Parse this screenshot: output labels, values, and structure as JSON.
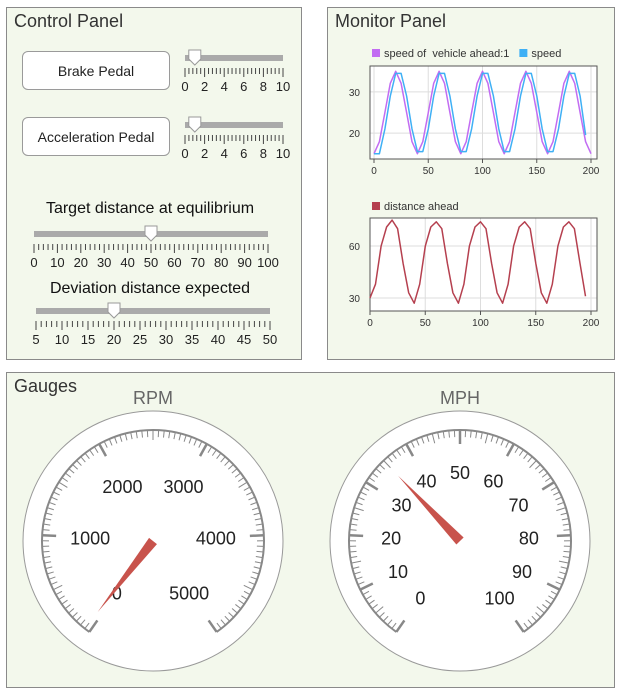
{
  "control_panel": {
    "title": "Control Panel",
    "brake_button": "Brake Pedal",
    "accel_button": "Acceleration Pedal",
    "brake_slider": {
      "min": 0,
      "max": 10,
      "value": 1,
      "labels": [
        "0",
        "2",
        "4",
        "6",
        "8",
        "10"
      ]
    },
    "accel_slider": {
      "min": 0,
      "max": 10,
      "value": 1,
      "labels": [
        "0",
        "2",
        "4",
        "6",
        "8",
        "10"
      ]
    },
    "target_label": "Target distance at equilibrium",
    "target_slider": {
      "min": 0,
      "max": 100,
      "value": 50,
      "labels": [
        "0",
        "10",
        "20",
        "30",
        "40",
        "50",
        "60",
        "70",
        "80",
        "90",
        "100"
      ]
    },
    "deviation_label": "Deviation distance expected",
    "deviation_slider": {
      "min": 5,
      "max": 50,
      "value": 20,
      "labels": [
        "5",
        "10",
        "15",
        "20",
        "25",
        "30",
        "35",
        "40",
        "45",
        "50"
      ]
    }
  },
  "monitor_panel": {
    "title": "Monitor Panel"
  },
  "chart_data": [
    {
      "type": "line",
      "x": [
        0,
        5,
        10,
        15,
        20,
        25,
        30,
        35,
        40,
        45,
        50,
        55,
        60,
        65,
        70,
        75,
        80,
        85,
        90,
        95,
        100,
        105,
        110,
        115,
        120,
        125,
        130,
        135,
        140,
        145,
        150,
        155,
        160,
        165,
        170,
        175,
        180,
        185,
        190,
        195,
        200
      ],
      "series": [
        {
          "name": "speed of  vehicle ahead:1",
          "color": "#c26cf2",
          "values": [
            15,
            17.9,
            25,
            32.1,
            35,
            32.1,
            25,
            17.9,
            15,
            17.9,
            25,
            32.1,
            35,
            32.1,
            25,
            17.9,
            15,
            17.9,
            25,
            32.1,
            35,
            32.1,
            25,
            17.9,
            15,
            17.9,
            25,
            32.1,
            35,
            32.1,
            25,
            17.9,
            15,
            17.9,
            25,
            32.1,
            35,
            32.1,
            25,
            17.9,
            15
          ]
        },
        {
          "name": "speed",
          "color": "#3fb0f5",
          "values": [
            15,
            15,
            21,
            29,
            34.5,
            34.5,
            29,
            21,
            15.5,
            15.5,
            21,
            29,
            34.5,
            34.5,
            29,
            21,
            15.5,
            15.5,
            21,
            29,
            34.5,
            34.5,
            29,
            21,
            15.5,
            15.5,
            21,
            29,
            34.5,
            34.5,
            29,
            21,
            15.5,
            15.5,
            21,
            29,
            34.5,
            34.5,
            29,
            19.5,
            null
          ]
        }
      ],
      "xticks": [
        "0",
        "50",
        "100",
        "150",
        "200"
      ],
      "yticks": [
        "20",
        "30"
      ],
      "xlim": [
        0,
        200
      ],
      "ylim": [
        13.7,
        36.3
      ],
      "grid": true,
      "legend": "top"
    },
    {
      "type": "line",
      "x": [
        0,
        5,
        10,
        15,
        20,
        25,
        30,
        35,
        40,
        45,
        50,
        55,
        60,
        65,
        70,
        75,
        80,
        85,
        90,
        95,
        100,
        105,
        110,
        115,
        120,
        125,
        130,
        135,
        140,
        145,
        150,
        155,
        160,
        165,
        170,
        175,
        180,
        185,
        190,
        195
      ],
      "series": [
        {
          "name": "distance ahead",
          "color": "#b5404f",
          "values": [
            30,
            38,
            60,
            71,
            75,
            70,
            50,
            33,
            27,
            38,
            60,
            71,
            74,
            70,
            50,
            33,
            27,
            38,
            60,
            71,
            74,
            70,
            50,
            33,
            27,
            38,
            60,
            71,
            74,
            70,
            50,
            33,
            27,
            38,
            60,
            71,
            74,
            70,
            50,
            31
          ]
        }
      ],
      "xticks": [
        "0",
        "50",
        "100",
        "150",
        "200"
      ],
      "yticks": [
        "30",
        "60"
      ],
      "xlim": [
        0,
        200
      ],
      "ylim": [
        22.5,
        76.2
      ],
      "grid": true,
      "legend": "top"
    }
  ],
  "gauges": {
    "title": "Gauges",
    "rpm": {
      "title": "RPM",
      "min": 0,
      "max": 5000,
      "value": 50,
      "labels": [
        "0",
        "1000",
        "2000",
        "3000",
        "4000",
        "5000"
      ],
      "needle_color": "#c8534c"
    },
    "mph": {
      "title": "MPH",
      "min": 0,
      "max": 100,
      "value": 35,
      "labels": [
        "0",
        "10",
        "20",
        "30",
        "40",
        "50",
        "60",
        "70",
        "80",
        "90",
        "100"
      ],
      "needle_color": "#c8534c"
    }
  }
}
